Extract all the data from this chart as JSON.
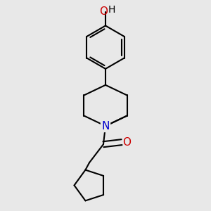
{
  "background_color": "#e8e8e8",
  "bond_color": "#000000",
  "N_color": "#0000cc",
  "O_color": "#cc0000",
  "H_color": "#000000",
  "line_width": 1.5,
  "font_size": 10,
  "fig_size": [
    3.0,
    3.0
  ],
  "dpi": 100,
  "xlim": [
    0.15,
    0.85
  ],
  "ylim": [
    0.02,
    0.98
  ]
}
